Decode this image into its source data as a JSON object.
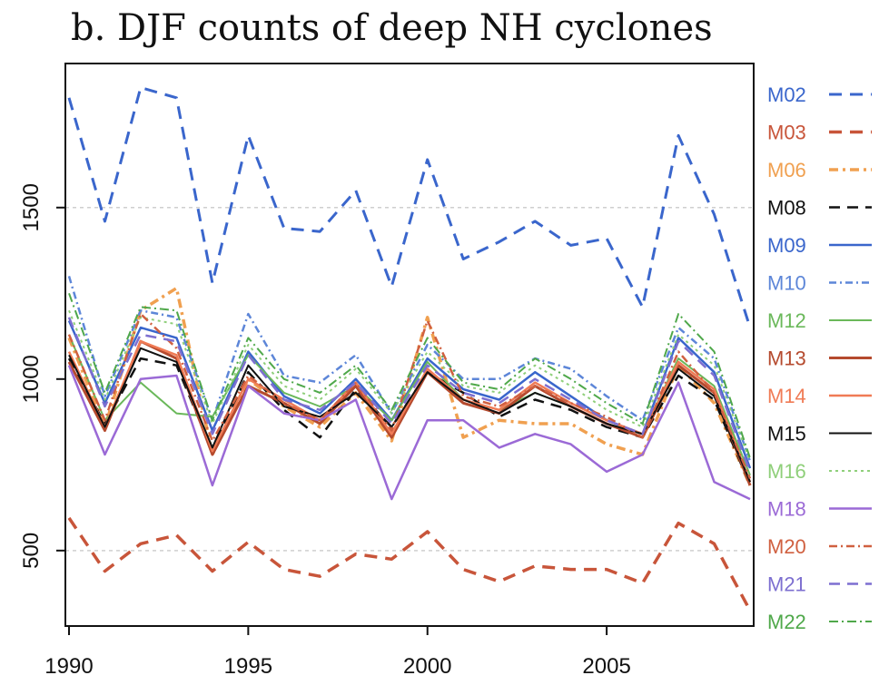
{
  "chart_data": {
    "type": "line",
    "title": "b. DJF counts of deep NH cyclones",
    "xlabel": "",
    "ylabel": "",
    "xlim": [
      1990,
      2009
    ],
    "ylim": [
      280,
      1920
    ],
    "xticks": [
      1990,
      1995,
      2000,
      2005
    ],
    "xtick_labels": [
      "1990",
      "1995",
      "2000",
      "2005"
    ],
    "yticks": [
      500,
      1000,
      1500
    ],
    "ytick_labels": [
      "500",
      "1000",
      "1500"
    ],
    "grid_y": [
      500,
      1500
    ],
    "legend_position": "right",
    "x": [
      1990,
      1991,
      1992,
      1993,
      1994,
      1995,
      1996,
      1997,
      1998,
      1999,
      2000,
      2001,
      2002,
      2003,
      2004,
      2005,
      2006,
      2007,
      2008,
      2009
    ],
    "series": [
      {
        "name": "M02",
        "color": "#3a66cc",
        "dash": "14,9",
        "width": 3,
        "values": [
          1820,
          1460,
          1850,
          1820,
          1280,
          1710,
          1440,
          1430,
          1550,
          1270,
          1640,
          1350,
          1400,
          1460,
          1390,
          1410,
          1210,
          1710,
          1480,
          1150
        ]
      },
      {
        "name": "M03",
        "color": "#c8553a",
        "dash": "14,9",
        "width": 3.5,
        "values": [
          595,
          440,
          520,
          545,
          440,
          525,
          445,
          425,
          490,
          475,
          555,
          445,
          410,
          455,
          445,
          445,
          405,
          580,
          520,
          325
        ]
      },
      {
        "name": "M06",
        "color": "#f0a050",
        "dash": "10,5,3,5",
        "width": 3.5,
        "values": [
          1120,
          860,
          1200,
          1265,
          780,
          1000,
          920,
          860,
          960,
          820,
          1180,
          830,
          880,
          870,
          870,
          810,
          780,
          1040,
          930,
          690
        ]
      },
      {
        "name": "M08",
        "color": "#111111",
        "dash": "12,8",
        "width": 2.5,
        "values": [
          1060,
          870,
          1060,
          1040,
          790,
          1020,
          910,
          830,
          970,
          860,
          1020,
          960,
          890,
          940,
          910,
          860,
          830,
          1010,
          940,
          690
        ]
      },
      {
        "name": "M09",
        "color": "#3a66cc",
        "dash": "",
        "width": 2.5,
        "values": [
          1170,
          930,
          1150,
          1120,
          850,
          1080,
          950,
          900,
          1000,
          880,
          1060,
          970,
          940,
          1020,
          950,
          880,
          840,
          1120,
          1020,
          740
        ]
      },
      {
        "name": "M10",
        "color": "#5d86d8",
        "dash": "8,4,2,4",
        "width": 2.5,
        "values": [
          1300,
          950,
          1200,
          1180,
          880,
          1190,
          1010,
          990,
          1070,
          900,
          1100,
          1000,
          1000,
          1060,
          1030,
          950,
          880,
          1150,
          1060,
          760
        ]
      },
      {
        "name": "M12",
        "color": "#6ab85a",
        "dash": "",
        "width": 2,
        "values": [
          1130,
          880,
          990,
          900,
          890,
          1070,
          960,
          920,
          980,
          880,
          1050,
          940,
          910,
          960,
          920,
          870,
          840,
          1060,
          980,
          720
        ]
      },
      {
        "name": "M13",
        "color": "#b54a2e",
        "dash": "",
        "width": 3,
        "values": [
          1050,
          850,
          1110,
          1060,
          780,
          980,
          930,
          870,
          980,
          830,
          1020,
          930,
          900,
          980,
          920,
          870,
          830,
          1040,
          960,
          690
        ]
      },
      {
        "name": "M14",
        "color": "#f07b55",
        "dash": "",
        "width": 2.5,
        "values": [
          1080,
          860,
          1110,
          1070,
          790,
          1000,
          940,
          880,
          990,
          840,
          1030,
          940,
          910,
          990,
          930,
          880,
          840,
          1050,
          970,
          700
        ]
      },
      {
        "name": "M15",
        "color": "#111111",
        "dash": "",
        "width": 2,
        "values": [
          1070,
          860,
          1090,
          1050,
          800,
          1040,
          920,
          890,
          960,
          860,
          1020,
          940,
          900,
          960,
          920,
          870,
          840,
          1030,
          950,
          700
        ]
      },
      {
        "name": "M16",
        "color": "#8fcf7a",
        "dash": "3,4",
        "width": 2,
        "values": [
          1200,
          940,
          1180,
          1160,
          870,
          1100,
          980,
          940,
          1030,
          900,
          1080,
          980,
          960,
          1040,
          980,
          910,
          860,
          1130,
          1040,
          760
        ]
      },
      {
        "name": "M18",
        "color": "#9b6ad6",
        "dash": "",
        "width": 2.5,
        "values": [
          1040,
          780,
          1000,
          1010,
          690,
          980,
          900,
          880,
          940,
          650,
          880,
          880,
          800,
          840,
          810,
          730,
          780,
          990,
          700,
          650
        ]
      },
      {
        "name": "M20",
        "color": "#d06040",
        "dash": "9,4,2,4",
        "width": 2.5,
        "values": [
          1130,
          880,
          1190,
          1090,
          820,
          1010,
          930,
          880,
          990,
          850,
          1170,
          950,
          920,
          980,
          930,
          890,
          830,
          1080,
          960,
          710
        ]
      },
      {
        "name": "M21",
        "color": "#7d6fd0",
        "dash": "12,8",
        "width": 2.5,
        "values": [
          1180,
          920,
          1130,
          1110,
          840,
          1070,
          940,
          910,
          990,
          870,
          1040,
          960,
          930,
          1000,
          940,
          880,
          840,
          1110,
          1010,
          730
        ]
      },
      {
        "name": "M22",
        "color": "#4fa84a",
        "dash": "10,4,2,4",
        "width": 2,
        "values": [
          1250,
          960,
          1210,
          1200,
          880,
          1120,
          1000,
          960,
          1040,
          910,
          1120,
          990,
          970,
          1060,
          1000,
          930,
          870,
          1190,
          1080,
          770
        ]
      }
    ]
  }
}
